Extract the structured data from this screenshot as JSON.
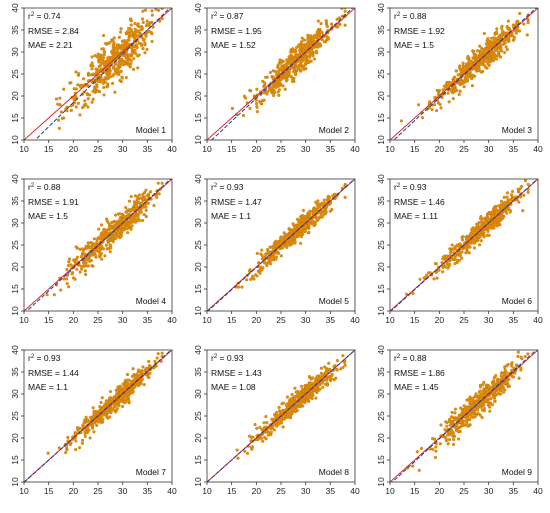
{
  "colors": {
    "points": "#E08E0B",
    "one_to_one_line": "#D62728",
    "fit_line": "#1F3A93",
    "frame": "#333333",
    "background": "#ffffff"
  },
  "chart_data": [
    {
      "type": "scatter",
      "title": "",
      "xlabel": "",
      "ylabel": "",
      "xlim": [
        10,
        40
      ],
      "ylim": [
        10,
        40
      ],
      "xticks": [
        10,
        15,
        20,
        25,
        30,
        35,
        40
      ],
      "yticks": [
        10,
        15,
        20,
        25,
        30,
        35,
        40
      ],
      "grid": false,
      "series": [
        {
          "n_points": 480,
          "x_mean": 28.8,
          "x_sd": 4.2,
          "y_mean": 28.8,
          "y_sd": 5.0,
          "r2": 0.74
        }
      ],
      "reference_line": {
        "slope": 1,
        "intercept": 0,
        "style": "solid",
        "color": "#D62728"
      },
      "fit_line": {
        "slope": 1.1,
        "intercept": -3.5,
        "style": "dashed",
        "color": "#1F3A93"
      },
      "annotations": {
        "r2_prefix": "r",
        "r2_sup": "2",
        "r2_value": " = 0.74",
        "rmse": "RMSE = 2.84",
        "mae": "MAE = 2.21",
        "model": "Model 1"
      }
    },
    {
      "type": "scatter",
      "title": "",
      "xlabel": "",
      "ylabel": "",
      "xlim": [
        10,
        40
      ],
      "ylim": [
        10,
        40
      ],
      "xticks": [
        10,
        15,
        20,
        25,
        30,
        35,
        40
      ],
      "yticks": [
        10,
        15,
        20,
        25,
        30,
        35,
        40
      ],
      "grid": false,
      "series": [
        {
          "n_points": 480,
          "x_mean": 28.8,
          "x_sd": 4.2,
          "y_mean": 28.8,
          "y_sd": 4.6,
          "r2": 0.87
        }
      ],
      "reference_line": {
        "slope": 1,
        "intercept": 0,
        "style": "solid",
        "color": "#D62728"
      },
      "fit_line": {
        "slope": 1.05,
        "intercept": -1.5,
        "style": "dashed",
        "color": "#1F3A93"
      },
      "annotations": {
        "r2_prefix": "r",
        "r2_sup": "2",
        "r2_value": " = 0.87",
        "rmse": "RMSE = 1.95",
        "mae": "MAE = 1.52",
        "model": "Model 2"
      }
    },
    {
      "type": "scatter",
      "title": "",
      "xlabel": "",
      "ylabel": "",
      "xlim": [
        10,
        40
      ],
      "ylim": [
        10,
        40
      ],
      "xticks": [
        10,
        15,
        20,
        25,
        30,
        35,
        40
      ],
      "yticks": [
        10,
        15,
        20,
        25,
        30,
        35,
        40
      ],
      "grid": false,
      "series": [
        {
          "n_points": 480,
          "x_mean": 28.8,
          "x_sd": 4.2,
          "y_mean": 28.8,
          "y_sd": 4.5,
          "r2": 0.88
        }
      ],
      "reference_line": {
        "slope": 1,
        "intercept": 0,
        "style": "solid",
        "color": "#D62728"
      },
      "fit_line": {
        "slope": 1.04,
        "intercept": -1.2,
        "style": "dashed",
        "color": "#1F3A93"
      },
      "annotations": {
        "r2_prefix": "r",
        "r2_sup": "2",
        "r2_value": " = 0.88",
        "rmse": "RMSE = 1.92",
        "mae": "MAE = 1.5",
        "model": "Model 3"
      }
    },
    {
      "type": "scatter",
      "title": "",
      "xlabel": "",
      "ylabel": "",
      "xlim": [
        10,
        40
      ],
      "ylim": [
        10,
        40
      ],
      "xticks": [
        10,
        15,
        20,
        25,
        30,
        35,
        40
      ],
      "yticks": [
        10,
        15,
        20,
        25,
        30,
        35,
        40
      ],
      "grid": false,
      "series": [
        {
          "n_points": 480,
          "x_mean": 28.8,
          "x_sd": 4.2,
          "y_mean": 28.8,
          "y_sd": 4.5,
          "r2": 0.88
        }
      ],
      "reference_line": {
        "slope": 1,
        "intercept": 0,
        "style": "solid",
        "color": "#D62728"
      },
      "fit_line": {
        "slope": 1.03,
        "intercept": -0.9,
        "style": "dashed",
        "color": "#1F3A93"
      },
      "annotations": {
        "r2_prefix": "r",
        "r2_sup": "2",
        "r2_value": " = 0.88",
        "rmse": "RMSE = 1.91",
        "mae": "MAE = 1.5",
        "model": "Model 4"
      }
    },
    {
      "type": "scatter",
      "title": "",
      "xlabel": "",
      "ylabel": "",
      "xlim": [
        10,
        40
      ],
      "ylim": [
        10,
        40
      ],
      "xticks": [
        10,
        15,
        20,
        25,
        30,
        35,
        40
      ],
      "yticks": [
        10,
        15,
        20,
        25,
        30,
        35,
        40
      ],
      "grid": false,
      "series": [
        {
          "n_points": 480,
          "x_mean": 28.8,
          "x_sd": 4.2,
          "y_mean": 28.8,
          "y_sd": 4.4,
          "r2": 0.93
        }
      ],
      "reference_line": {
        "slope": 1,
        "intercept": 0,
        "style": "solid",
        "color": "#D62728"
      },
      "fit_line": {
        "slope": 1.01,
        "intercept": -0.3,
        "style": "dashed",
        "color": "#1F3A93"
      },
      "annotations": {
        "r2_prefix": "r",
        "r2_sup": "2",
        "r2_value": " = 0.93",
        "rmse": "RMSE = 1.47",
        "mae": "MAE = 1.1",
        "model": "Model 5"
      }
    },
    {
      "type": "scatter",
      "title": "",
      "xlabel": "",
      "ylabel": "",
      "xlim": [
        10,
        40
      ],
      "ylim": [
        10,
        40
      ],
      "xticks": [
        10,
        15,
        20,
        25,
        30,
        35,
        40
      ],
      "yticks": [
        10,
        15,
        20,
        25,
        30,
        35,
        40
      ],
      "grid": false,
      "series": [
        {
          "n_points": 480,
          "x_mean": 28.8,
          "x_sd": 4.2,
          "y_mean": 28.8,
          "y_sd": 4.4,
          "r2": 0.93
        }
      ],
      "reference_line": {
        "slope": 1,
        "intercept": 0,
        "style": "solid",
        "color": "#D62728"
      },
      "fit_line": {
        "slope": 1.01,
        "intercept": -0.3,
        "style": "dashed",
        "color": "#1F3A93"
      },
      "annotations": {
        "r2_prefix": "r",
        "r2_sup": "2",
        "r2_value": " = 0.93",
        "rmse": "RMSE = 1.46",
        "mae": "MAE = 1.11",
        "model": "Model 6"
      }
    },
    {
      "type": "scatter",
      "title": "",
      "xlabel": "",
      "ylabel": "",
      "xlim": [
        10,
        40
      ],
      "ylim": [
        10,
        40
      ],
      "xticks": [
        10,
        15,
        20,
        25,
        30,
        35,
        40
      ],
      "yticks": [
        10,
        15,
        20,
        25,
        30,
        35,
        40
      ],
      "grid": false,
      "series": [
        {
          "n_points": 480,
          "x_mean": 28.8,
          "x_sd": 4.2,
          "y_mean": 28.8,
          "y_sd": 4.4,
          "r2": 0.93
        }
      ],
      "reference_line": {
        "slope": 1,
        "intercept": 0,
        "style": "solid",
        "color": "#D62728"
      },
      "fit_line": {
        "slope": 1.01,
        "intercept": -0.2,
        "style": "dashed",
        "color": "#1F3A93"
      },
      "annotations": {
        "r2_prefix": "r",
        "r2_sup": "2",
        "r2_value": " = 0.93",
        "rmse": "RMSE = 1.44",
        "mae": "MAE = 1.1",
        "model": "Model 7"
      }
    },
    {
      "type": "scatter",
      "title": "",
      "xlabel": "",
      "ylabel": "",
      "xlim": [
        10,
        40
      ],
      "ylim": [
        10,
        40
      ],
      "xticks": [
        10,
        15,
        20,
        25,
        30,
        35,
        40
      ],
      "yticks": [
        10,
        15,
        20,
        25,
        30,
        35,
        40
      ],
      "grid": false,
      "series": [
        {
          "n_points": 480,
          "x_mean": 28.8,
          "x_sd": 4.2,
          "y_mean": 28.8,
          "y_sd": 4.4,
          "r2": 0.93
        }
      ],
      "reference_line": {
        "slope": 1,
        "intercept": 0,
        "style": "solid",
        "color": "#D62728"
      },
      "fit_line": {
        "slope": 1.0,
        "intercept": 0.0,
        "style": "dashed",
        "color": "#1F3A93"
      },
      "annotations": {
        "r2_prefix": "r",
        "r2_sup": "2",
        "r2_value": " = 0.93",
        "rmse": "RMSE = 1.43",
        "mae": "MAE = 1.08",
        "model": "Model 8"
      }
    },
    {
      "type": "scatter",
      "title": "",
      "xlabel": "",
      "ylabel": "",
      "xlim": [
        10,
        40
      ],
      "ylim": [
        10,
        40
      ],
      "xticks": [
        10,
        15,
        20,
        25,
        30,
        35,
        40
      ],
      "yticks": [
        10,
        15,
        20,
        25,
        30,
        35,
        40
      ],
      "grid": false,
      "series": [
        {
          "n_points": 480,
          "x_mean": 28.8,
          "x_sd": 4.2,
          "y_mean": 28.8,
          "y_sd": 4.5,
          "r2": 0.88
        }
      ],
      "reference_line": {
        "slope": 1,
        "intercept": 0,
        "style": "solid",
        "color": "#D62728"
      },
      "fit_line": {
        "slope": 1.03,
        "intercept": -0.8,
        "style": "dashed",
        "color": "#1F3A93"
      },
      "annotations": {
        "r2_prefix": "r",
        "r2_sup": "2",
        "r2_value": " = 0.88",
        "rmse": "RMSE = 1.86",
        "mae": "MAE = 1.45",
        "model": "Model 9"
      }
    }
  ]
}
